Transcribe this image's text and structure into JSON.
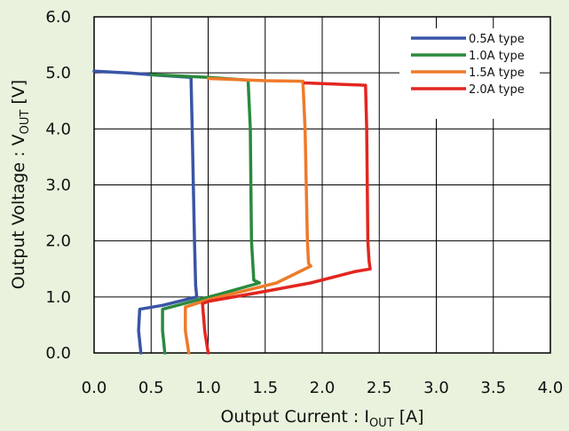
{
  "chart_data": {
    "type": "line",
    "title": "",
    "xlabel": {
      "main": "Output Current : I",
      "sub": "OUT",
      "unit": " [A]"
    },
    "ylabel": {
      "main": "Output Voltage : V",
      "sub": "OUT",
      "unit": " [V]"
    },
    "xlim": [
      0,
      4.0
    ],
    "ylim": [
      0,
      6.0
    ],
    "x_ticks": [
      "0.0",
      "0.5",
      "1.0",
      "1.5",
      "2.0",
      "2.5",
      "3.0",
      "3.5",
      "4.0"
    ],
    "y_ticks": [
      "0.0",
      "1.0",
      "2.0",
      "3.0",
      "4.0",
      "5.0",
      "6.0"
    ],
    "grid": true,
    "legend_position": "top-right",
    "series": [
      {
        "name": "0.5A type",
        "color": "#3a55a6",
        "points": [
          [
            0.0,
            5.03
          ],
          [
            0.3,
            5.0
          ],
          [
            0.55,
            4.96
          ],
          [
            0.85,
            4.92
          ],
          [
            0.86,
            4.0
          ],
          [
            0.88,
            2.0
          ],
          [
            0.89,
            1.2
          ],
          [
            0.9,
            1.0
          ],
          [
            0.6,
            0.85
          ],
          [
            0.4,
            0.78
          ],
          [
            0.39,
            0.4
          ],
          [
            0.41,
            0.0
          ]
        ]
      },
      {
        "name": "1.0A type",
        "color": "#2a8a3e",
        "points": [
          [
            0.5,
            4.97
          ],
          [
            1.0,
            4.92
          ],
          [
            1.35,
            4.87
          ],
          [
            1.37,
            4.0
          ],
          [
            1.38,
            2.0
          ],
          [
            1.4,
            1.3
          ],
          [
            1.45,
            1.25
          ],
          [
            1.1,
            1.05
          ],
          [
            0.6,
            0.78
          ],
          [
            0.6,
            0.4
          ],
          [
            0.62,
            0.0
          ]
        ]
      },
      {
        "name": "1.5A type",
        "color": "#ef7a2a",
        "points": [
          [
            1.0,
            4.9
          ],
          [
            1.5,
            4.86
          ],
          [
            1.83,
            4.85
          ],
          [
            1.85,
            4.0
          ],
          [
            1.87,
            2.0
          ],
          [
            1.88,
            1.6
          ],
          [
            1.9,
            1.55
          ],
          [
            1.6,
            1.25
          ],
          [
            1.0,
            0.95
          ],
          [
            0.8,
            0.82
          ],
          [
            0.8,
            0.4
          ],
          [
            0.83,
            0.0
          ]
        ]
      },
      {
        "name": "2.0A type",
        "color": "#e2261f",
        "points": [
          [
            1.85,
            4.82
          ],
          [
            2.1,
            4.8
          ],
          [
            2.38,
            4.78
          ],
          [
            2.39,
            4.0
          ],
          [
            2.4,
            2.0
          ],
          [
            2.41,
            1.65
          ],
          [
            2.42,
            1.5
          ],
          [
            2.28,
            1.45
          ],
          [
            1.9,
            1.25
          ],
          [
            1.5,
            1.1
          ],
          [
            1.0,
            0.92
          ],
          [
            0.95,
            0.88
          ],
          [
            0.97,
            0.4
          ],
          [
            1.0,
            0.0
          ]
        ]
      }
    ]
  }
}
